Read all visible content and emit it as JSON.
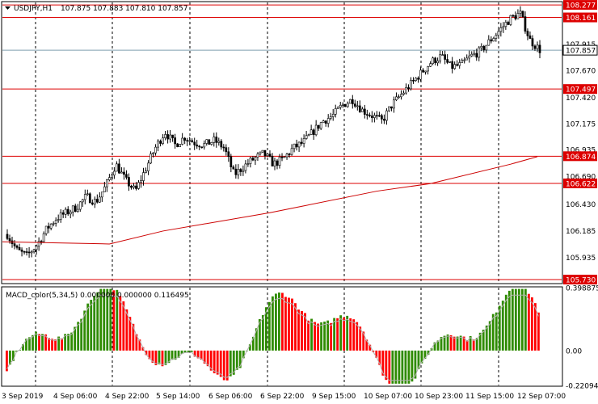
{
  "window": {
    "symbol_label": "USDJPY,H1",
    "ohlc_text": "107.875 107.883 107.810 107.857"
  },
  "colors": {
    "bull": "#2e8b00",
    "bear": "#ff0000",
    "level_line": "#dd0000",
    "ma_line": "#cc0000",
    "grid": "#000000",
    "current_price_line": "#7f9faf",
    "macd_signal": "#b0b0b0"
  },
  "chart_data": [
    {
      "type": "candlestick",
      "ylim": [
        105.7,
        108.3
      ],
      "price_labels": [
        "108.277",
        "108.161",
        "107.915",
        "107.857",
        "107.670",
        "107.497",
        "107.420",
        "107.175",
        "106.935",
        "106.874",
        "106.690",
        "106.622",
        "106.430",
        "106.185",
        "105.935",
        "105.730"
      ],
      "horizontal_levels": [
        108.277,
        108.161,
        107.497,
        106.874,
        106.622,
        105.73
      ],
      "current_price": 107.857,
      "x_tick_labels": [
        "3 Sep 2019",
        "4 Sep 06:00",
        "4 Sep 22:00",
        "5 Sep 14:00",
        "6 Sep 06:00",
        "6 Sep 22:00",
        "9 Sep 15:00",
        "10 Sep 07:00",
        "10 Sep 23:00",
        "11 Sep 15:00",
        "12 Sep 07:00"
      ],
      "close_path": [
        106.15,
        106.0,
        105.95,
        106.05,
        106.2,
        106.3,
        106.35,
        106.4,
        106.5,
        106.45,
        106.6,
        106.8,
        106.65,
        106.55,
        106.75,
        106.95,
        107.1,
        106.98,
        107.05,
        107.0,
        106.98,
        107.02,
        106.95,
        106.7,
        106.78,
        106.85,
        106.9,
        106.8,
        106.85,
        106.95,
        107.0,
        107.1,
        107.2,
        107.25,
        107.35,
        107.4,
        107.3,
        107.25,
        107.2,
        107.35,
        107.45,
        107.55,
        107.65,
        107.75,
        107.8,
        107.7,
        107.72,
        107.8,
        107.85,
        107.95,
        108.05,
        108.15,
        108.2,
        107.95,
        107.86
      ],
      "moving_average": {
        "points": [
          [
            0,
            106.08
          ],
          [
            0.2,
            106.06
          ],
          [
            0.3,
            106.18
          ],
          [
            0.5,
            106.35
          ],
          [
            0.7,
            106.55
          ],
          [
            0.8,
            106.62
          ],
          [
            0.95,
            106.8
          ],
          [
            1.0,
            106.87
          ]
        ]
      }
    },
    {
      "type": "bar",
      "title": "MACD_color(5,34,5) 0.000000 0.000000 0.116495",
      "ylim": [
        -0.220944,
        0.398875
      ],
      "tick_labels": [
        "0.398875",
        "0.00",
        "-0.220944"
      ]
    }
  ]
}
